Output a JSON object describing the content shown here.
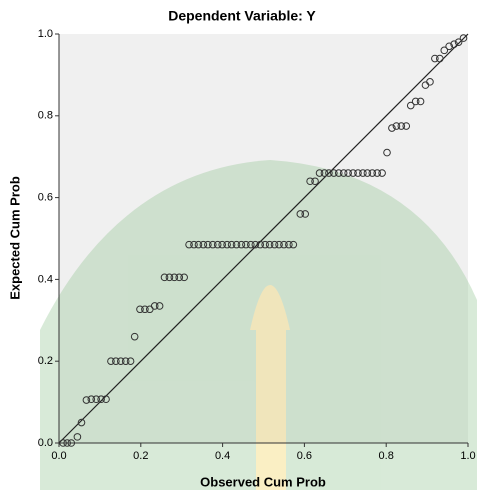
{
  "chart_data": {
    "type": "scatter",
    "title": "Dependent Variable: Y",
    "x_label": "Observed Cum Prob",
    "y_label": "Expected Cum Prob",
    "color": "#333333",
    "plot_background": "#f0f0f0",
    "xlim": [
      0,
      1
    ],
    "ylim": [
      0,
      1
    ],
    "xticks": [
      {
        "value": 0,
        "label": "0.0"
      },
      {
        "value": 0.2,
        "label": "0.2"
      },
      {
        "value": 0.4,
        "label": "0.4"
      },
      {
        "value": 0.6,
        "label": "0.6"
      },
      {
        "value": 0.8,
        "label": "0.8"
      },
      {
        "value": 1,
        "label": "1.0"
      }
    ],
    "yticks": [
      {
        "value": 0,
        "label": "0.0"
      },
      {
        "value": 0.2,
        "label": "0.2"
      },
      {
        "value": 0.4,
        "label": "0.4"
      },
      {
        "value": 0.6,
        "label": "0.6"
      },
      {
        "value": 0.8,
        "label": "0.8"
      },
      {
        "value": 1,
        "label": "1.0"
      }
    ],
    "x": [
      0.01,
      0.02,
      0.03,
      0.045,
      0.055,
      0.067,
      0.079,
      0.091,
      0.103,
      0.115,
      0.127,
      0.139,
      0.151,
      0.163,
      0.175,
      0.185,
      0.198,
      0.21,
      0.222,
      0.234,
      0.246,
      0.258,
      0.27,
      0.282,
      0.294,
      0.306,
      0.318,
      0.33,
      0.341,
      0.353,
      0.364,
      0.376,
      0.388,
      0.399,
      0.411,
      0.422,
      0.434,
      0.446,
      0.457,
      0.469,
      0.48,
      0.492,
      0.504,
      0.515,
      0.527,
      0.538,
      0.55,
      0.562,
      0.573,
      0.59,
      0.602,
      0.614,
      0.626,
      0.637,
      0.649,
      0.66,
      0.672,
      0.684,
      0.696,
      0.707,
      0.719,
      0.731,
      0.743,
      0.754,
      0.766,
      0.778,
      0.79,
      0.802,
      0.814,
      0.825,
      0.837,
      0.849,
      0.86,
      0.872,
      0.884,
      0.896,
      0.907,
      0.919,
      0.931,
      0.942,
      0.954,
      0.966,
      0.977,
      0.989
    ],
    "values": [
      0,
      0,
      0,
      0.015,
      0.05,
      0.105,
      0.107,
      0.107,
      0.107,
      0.107,
      0.2,
      0.2,
      0.2,
      0.2,
      0.2,
      0.26,
      0.327,
      0.327,
      0.327,
      0.335,
      0.335,
      0.405,
      0.405,
      0.405,
      0.405,
      0.405,
      0.485,
      0.485,
      0.485,
      0.485,
      0.485,
      0.485,
      0.485,
      0.485,
      0.485,
      0.485,
      0.485,
      0.485,
      0.485,
      0.485,
      0.485,
      0.485,
      0.485,
      0.485,
      0.485,
      0.485,
      0.485,
      0.485,
      0.485,
      0.56,
      0.56,
      0.64,
      0.64,
      0.66,
      0.66,
      0.66,
      0.66,
      0.66,
      0.66,
      0.66,
      0.66,
      0.66,
      0.66,
      0.66,
      0.66,
      0.66,
      0.66,
      0.71,
      0.77,
      0.775,
      0.775,
      0.775,
      0.825,
      0.835,
      0.835,
      0.875,
      0.883,
      0.94,
      0.94,
      0.96,
      0.97,
      0.975,
      0.98,
      0.99
    ]
  }
}
